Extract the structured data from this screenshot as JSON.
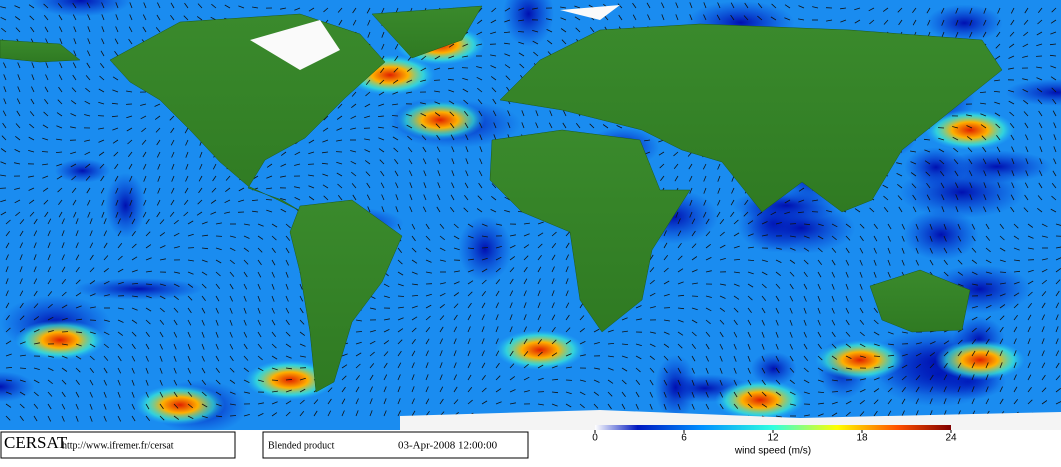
{
  "footer": {
    "logo": "CERSAT",
    "url": "http://www.ifremer.fr/cersat",
    "product": "Blended product",
    "date": "03-Apr-2008 12:00:00"
  },
  "colorbar": {
    "label": "wind speed (m/s)",
    "lim": [
      0,
      24
    ],
    "ticks": [
      0,
      6,
      12,
      18,
      24
    ]
  }
}
